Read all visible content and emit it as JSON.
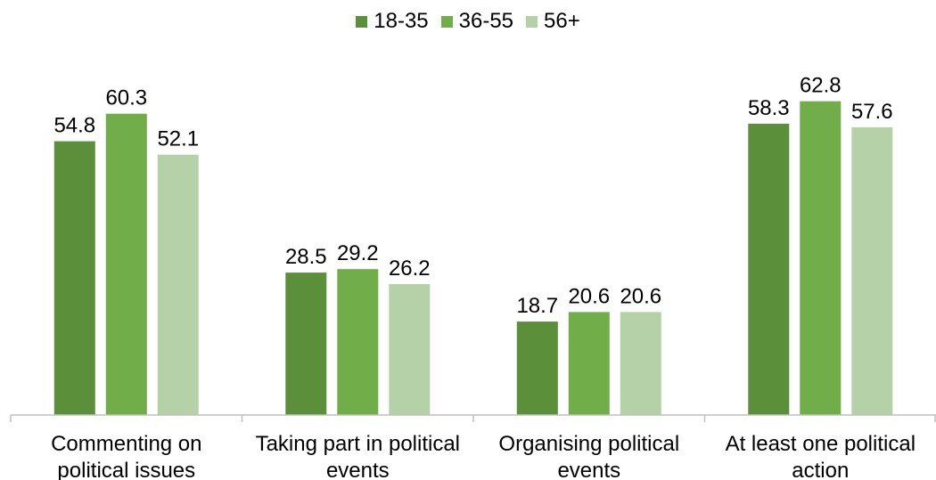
{
  "chart_data": {
    "type": "bar",
    "categories": [
      "Commenting on political issues",
      "Taking part in political events",
      "Organising political events",
      "At least one political action"
    ],
    "category_lines": [
      [
        "Commenting on",
        "political issues"
      ],
      [
        "Taking part in political",
        "events"
      ],
      [
        "Organising political",
        "events"
      ],
      [
        "At least one political",
        "action"
      ]
    ],
    "series": [
      {
        "name": "18-35",
        "values": [
          54.8,
          28.5,
          18.7,
          58.3
        ],
        "color": "#5b8f3a"
      },
      {
        "name": "36-55",
        "values": [
          60.3,
          29.2,
          20.6,
          62.8
        ],
        "color": "#71ad48"
      },
      {
        "name": "56+",
        "values": [
          52.1,
          26.2,
          20.6,
          57.6
        ],
        "color": "#b5d1a7"
      }
    ],
    "title": "",
    "xlabel": "",
    "ylabel": "",
    "ylim": [
      0,
      65
    ],
    "grid": false,
    "legend_position": "top-center"
  }
}
